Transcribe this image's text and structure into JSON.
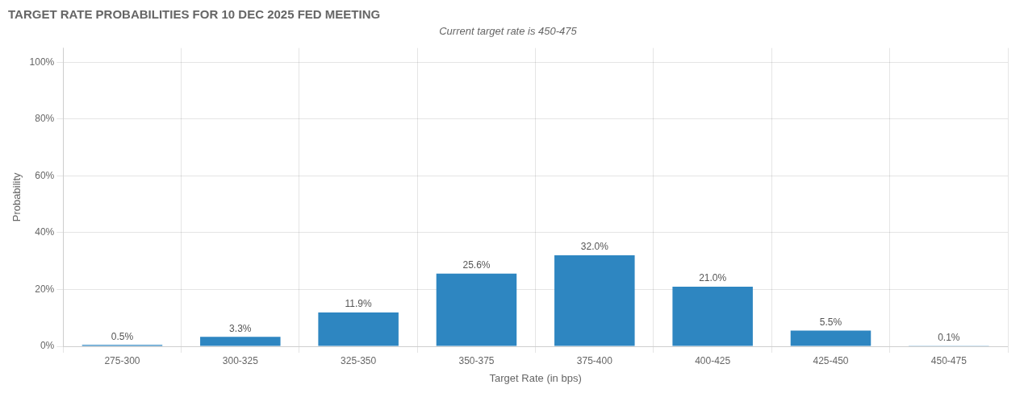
{
  "chart_data": {
    "type": "bar",
    "title": "TARGET RATE PROBABILITIES FOR 10 DEC 2025 FED MEETING",
    "subtitle": "Current target rate is 450-475",
    "categories": [
      "275-300",
      "300-325",
      "325-350",
      "350-375",
      "375-400",
      "400-425",
      "425-450",
      "450-475"
    ],
    "values": [
      0.5,
      3.3,
      11.9,
      25.6,
      32.0,
      21.0,
      5.5,
      0.1
    ],
    "value_labels": [
      "0.5%",
      "3.3%",
      "11.9%",
      "25.6%",
      "32.0%",
      "21.0%",
      "5.5%",
      "0.1%"
    ],
    "data_labels": true,
    "color": "#2e86c1",
    "xlabel": "Target Rate (in bps)",
    "ylabel": "Probability",
    "ylim": [
      0,
      105
    ],
    "yticks": [
      {
        "value": 0,
        "label": "0%"
      },
      {
        "value": 20,
        "label": "20%"
      },
      {
        "value": 40,
        "label": "40%"
      },
      {
        "value": 60,
        "label": "60%"
      },
      {
        "value": 80,
        "label": "80%"
      },
      {
        "value": 100,
        "label": "100%"
      }
    ],
    "grid": true
  }
}
